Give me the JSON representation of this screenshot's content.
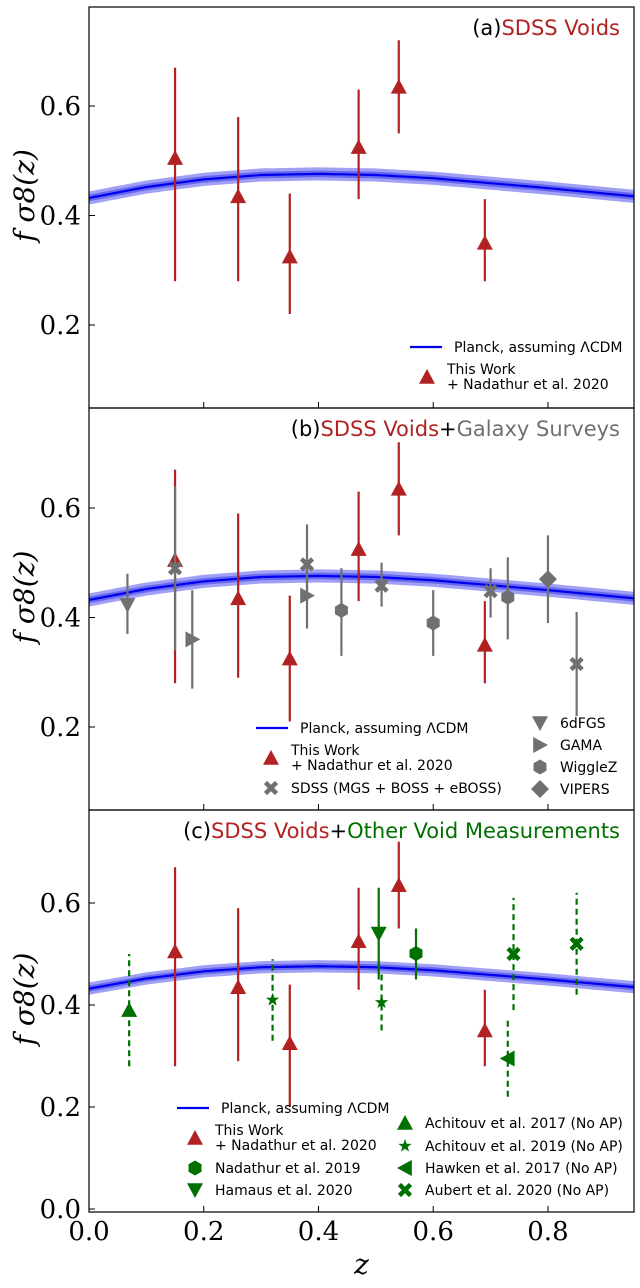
{
  "chart_data": [
    {
      "type": "scatter",
      "panel_label": "(a)",
      "title_parts": [
        {
          "text": "SDSS Voids",
          "color": "#b22222"
        }
      ],
      "xlabel": "z",
      "ylabel": "f σ8(z)",
      "xlim": [
        0.0,
        0.95
      ],
      "ylim": [
        0.04,
        0.78
      ],
      "yticks": [
        "0.2",
        "0.4",
        "0.6"
      ],
      "legend_position": "bottom-right",
      "model": {
        "label": "Planck, assuming ΛCDM",
        "color": "#0000ee",
        "band_color": "#8f8ff5",
        "z": [
          0.0,
          0.1,
          0.2,
          0.3,
          0.4,
          0.5,
          0.6,
          0.7,
          0.8,
          0.95
        ],
        "fs8": [
          0.432,
          0.452,
          0.466,
          0.474,
          0.476,
          0.474,
          0.468,
          0.459,
          0.45,
          0.435
        ]
      },
      "series": [
        {
          "name": "This Work + Nadathur et al. 2020",
          "legend_lines": [
            "This Work",
            "+ Nadathur et al. 2020"
          ],
          "marker": "triangle-up",
          "color": "#b22222",
          "dashed": false,
          "points": [
            {
              "x": 0.15,
              "y": 0.505,
              "lo": 0.28,
              "hi": 0.67
            },
            {
              "x": 0.26,
              "y": 0.435,
              "lo": 0.28,
              "hi": 0.58
            },
            {
              "x": 0.35,
              "y": 0.325,
              "lo": 0.22,
              "hi": 0.44
            },
            {
              "x": 0.47,
              "y": 0.525,
              "lo": 0.43,
              "hi": 0.63
            },
            {
              "x": 0.54,
              "y": 0.635,
              "lo": 0.55,
              "hi": 0.72
            },
            {
              "x": 0.69,
              "y": 0.35,
              "lo": 0.28,
              "hi": 0.43
            }
          ]
        }
      ]
    },
    {
      "type": "scatter",
      "panel_label": "(b)",
      "title_parts": [
        {
          "text": "SDSS Voids",
          "color": "#b22222"
        },
        {
          "text": "+",
          "color": "#000000"
        },
        {
          "text": "Galaxy Surveys",
          "color": "#707070"
        }
      ],
      "xlabel": "z",
      "ylabel": "f σ8(z)",
      "xlim": [
        0.0,
        0.95
      ],
      "ylim": [
        0.04,
        0.78
      ],
      "yticks": [
        "0.2",
        "0.4",
        "0.6"
      ],
      "legend_position": "bottom-center",
      "model": {
        "label": "Planck, assuming ΛCDM",
        "color": "#0000ee",
        "band_color": "#8f8ff5",
        "z": [
          0.0,
          0.1,
          0.2,
          0.3,
          0.4,
          0.5,
          0.6,
          0.7,
          0.8,
          0.95
        ],
        "fs8": [
          0.432,
          0.452,
          0.466,
          0.474,
          0.476,
          0.474,
          0.468,
          0.459,
          0.45,
          0.435
        ]
      },
      "series": [
        {
          "name": "This Work + Nadathur et al. 2020",
          "legend_lines": [
            "This Work",
            "+ Nadathur et al. 2020"
          ],
          "marker": "triangle-up",
          "color": "#b22222",
          "dashed": false,
          "points": [
            {
              "x": 0.15,
              "y": 0.505,
              "lo": 0.28,
              "hi": 0.67
            },
            {
              "x": 0.26,
              "y": 0.435,
              "lo": 0.29,
              "hi": 0.59
            },
            {
              "x": 0.35,
              "y": 0.325,
              "lo": 0.21,
              "hi": 0.44
            },
            {
              "x": 0.47,
              "y": 0.525,
              "lo": 0.43,
              "hi": 0.63
            },
            {
              "x": 0.54,
              "y": 0.635,
              "lo": 0.55,
              "hi": 0.72
            },
            {
              "x": 0.69,
              "y": 0.35,
              "lo": 0.28,
              "hi": 0.43
            }
          ]
        },
        {
          "name": "SDSS (MGS + BOSS + eBOSS)",
          "legend_lines": [
            "SDSS (MGS + BOSS + eBOSS)"
          ],
          "marker": "x",
          "color": "#707070",
          "dashed": false,
          "points": [
            {
              "x": 0.15,
              "y": 0.49,
              "lo": 0.34,
              "hi": 0.64
            },
            {
              "x": 0.38,
              "y": 0.497,
              "lo": 0.43,
              "hi": 0.57
            },
            {
              "x": 0.51,
              "y": 0.458,
              "lo": 0.42,
              "hi": 0.5
            },
            {
              "x": 0.7,
              "y": 0.448,
              "lo": 0.4,
              "hi": 0.49
            },
            {
              "x": 0.85,
              "y": 0.315,
              "lo": 0.22,
              "hi": 0.41
            }
          ]
        },
        {
          "name": "6dFGS",
          "legend_lines": [
            "6dFGS"
          ],
          "marker": "triangle-down",
          "color": "#707070",
          "dashed": false,
          "points": [
            {
              "x": 0.067,
              "y": 0.423,
              "lo": 0.37,
              "hi": 0.48
            }
          ]
        },
        {
          "name": "GAMA",
          "legend_lines": [
            "GAMA"
          ],
          "marker": "triangle-right",
          "color": "#707070",
          "dashed": false,
          "points": [
            {
              "x": 0.18,
              "y": 0.36,
              "lo": 0.27,
              "hi": 0.45
            },
            {
              "x": 0.38,
              "y": 0.44,
              "lo": 0.38,
              "hi": 0.5
            }
          ]
        },
        {
          "name": "WiggleZ",
          "legend_lines": [
            "WiggleZ"
          ],
          "marker": "hexagon",
          "color": "#707070",
          "dashed": false,
          "points": [
            {
              "x": 0.44,
              "y": 0.413,
              "lo": 0.33,
              "hi": 0.49
            },
            {
              "x": 0.6,
              "y": 0.39,
              "lo": 0.33,
              "hi": 0.45
            },
            {
              "x": 0.73,
              "y": 0.437,
              "lo": 0.36,
              "hi": 0.51
            }
          ]
        },
        {
          "name": "VIPERS",
          "legend_lines": [
            "VIPERS"
          ],
          "marker": "diamond",
          "color": "#707070",
          "dashed": false,
          "points": [
            {
              "x": 0.8,
              "y": 0.47,
              "lo": 0.39,
              "hi": 0.55
            }
          ]
        }
      ]
    },
    {
      "type": "scatter",
      "panel_label": "(c)",
      "title_parts": [
        {
          "text": "SDSS Voids",
          "color": "#b22222"
        },
        {
          "text": "+",
          "color": "#000000"
        },
        {
          "text": "Other Void Measurements",
          "color": "#007000"
        }
      ],
      "xlabel": "z",
      "ylabel": "f σ8(z)",
      "xlim": [
        0.0,
        0.95
      ],
      "ylim": [
        0.0,
        0.78
      ],
      "yticks": [
        "0.0",
        "0.2",
        "0.4",
        "0.6"
      ],
      "xticks": [
        "0.0",
        "0.2",
        "0.4",
        "0.6",
        "0.8"
      ],
      "legend_position": "bottom",
      "model": {
        "label": "Planck, assuming ΛCDM",
        "color": "#0000ee",
        "band_color": "#8f8ff5",
        "z": [
          0.0,
          0.1,
          0.2,
          0.3,
          0.4,
          0.5,
          0.6,
          0.7,
          0.8,
          0.95
        ],
        "fs8": [
          0.432,
          0.452,
          0.466,
          0.474,
          0.476,
          0.474,
          0.468,
          0.459,
          0.45,
          0.435
        ]
      },
      "series": [
        {
          "name": "This Work + Nadathur et al. 2020",
          "legend_lines": [
            "This Work",
            "+ Nadathur et al. 2020"
          ],
          "marker": "triangle-up",
          "color": "#b22222",
          "dashed": false,
          "points": [
            {
              "x": 0.15,
              "y": 0.505,
              "lo": 0.28,
              "hi": 0.67
            },
            {
              "x": 0.26,
              "y": 0.435,
              "lo": 0.29,
              "hi": 0.59
            },
            {
              "x": 0.35,
              "y": 0.325,
              "lo": 0.2,
              "hi": 0.44
            },
            {
              "x": 0.47,
              "y": 0.525,
              "lo": 0.43,
              "hi": 0.63
            },
            {
              "x": 0.54,
              "y": 0.635,
              "lo": 0.55,
              "hi": 0.72
            },
            {
              "x": 0.69,
              "y": 0.35,
              "lo": 0.28,
              "hi": 0.43
            }
          ]
        },
        {
          "name": "Nadathur et al. 2019",
          "legend_lines": [
            "Nadathur et al. 2019"
          ],
          "marker": "hexagon",
          "color": "#007000",
          "dashed": false,
          "points": [
            {
              "x": 0.57,
              "y": 0.501,
              "lo": 0.45,
              "hi": 0.55
            }
          ]
        },
        {
          "name": "Hamaus et al. 2020",
          "legend_lines": [
            "Hamaus et al. 2020"
          ],
          "marker": "triangle-down",
          "color": "#007000",
          "dashed": false,
          "points": [
            {
              "x": 0.505,
              "y": 0.54,
              "lo": 0.45,
              "hi": 0.63
            }
          ]
        },
        {
          "name": "Achitouv et al. 2017 (No AP)",
          "legend_lines": [
            "Achitouv et al. 2017 (No AP)"
          ],
          "marker": "triangle-up",
          "color": "#007000",
          "dashed": true,
          "points": [
            {
              "x": 0.07,
              "y": 0.39,
              "lo": 0.28,
              "hi": 0.5
            }
          ]
        },
        {
          "name": "Achitouv et al. 2019 (No AP)",
          "legend_lines": [
            "Achitouv et al. 2019 (No AP)"
          ],
          "marker": "star",
          "color": "#007000",
          "dashed": true,
          "points": [
            {
              "x": 0.32,
              "y": 0.41,
              "lo": 0.33,
              "hi": 0.49
            },
            {
              "x": 0.51,
              "y": 0.405,
              "lo": 0.35,
              "hi": 0.46
            }
          ]
        },
        {
          "name": "Hawken et al. 2017 (No AP)",
          "legend_lines": [
            "Hawken et al. 2017 (No AP)"
          ],
          "marker": "triangle-left",
          "color": "#007000",
          "dashed": true,
          "points": [
            {
              "x": 0.73,
              "y": 0.295,
              "lo": 0.22,
              "hi": 0.37
            }
          ]
        },
        {
          "name": "Aubert et al. 2020 (No AP)",
          "legend_lines": [
            "Aubert et al. 2020 (No AP)"
          ],
          "marker": "x",
          "color": "#007000",
          "dashed": true,
          "points": [
            {
              "x": 0.74,
              "y": 0.5,
              "lo": 0.39,
              "hi": 0.61
            },
            {
              "x": 0.85,
              "y": 0.52,
              "lo": 0.42,
              "hi": 0.62
            }
          ]
        }
      ]
    }
  ]
}
